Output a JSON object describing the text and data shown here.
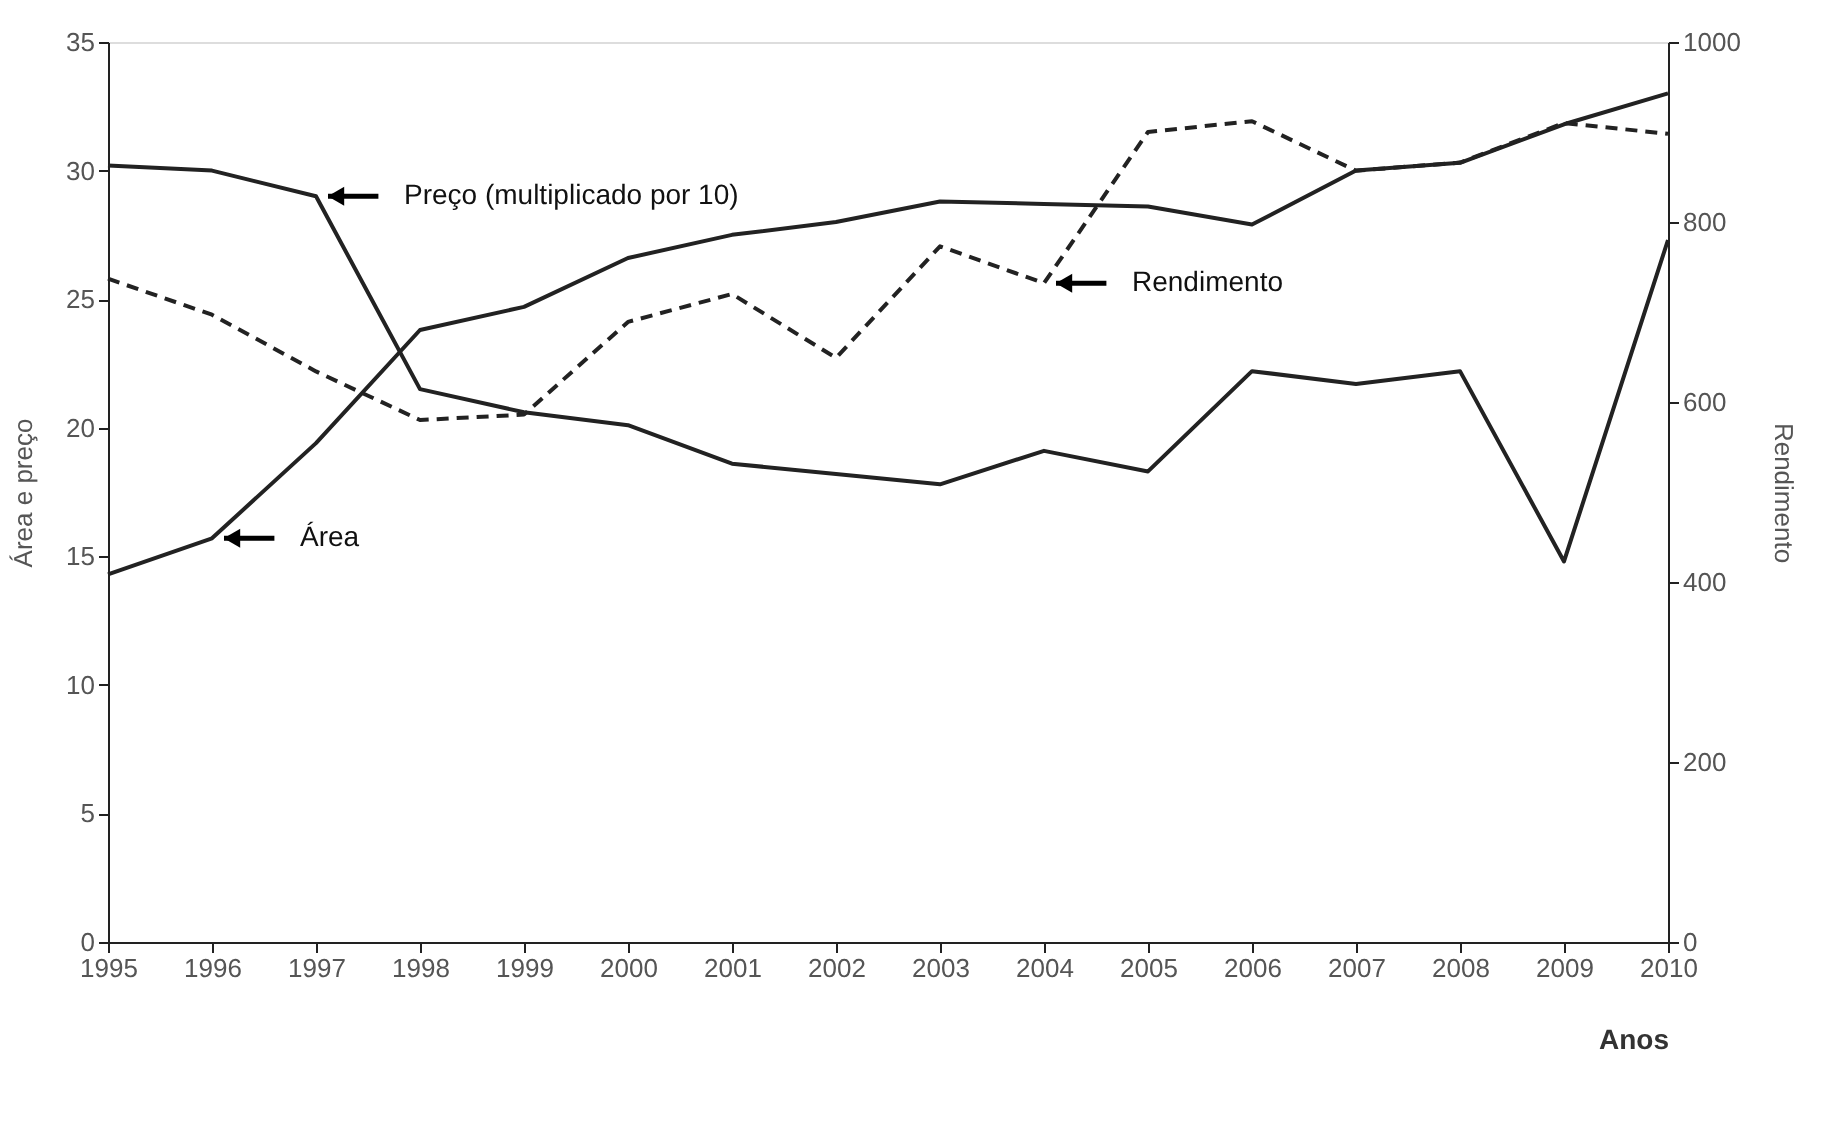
{
  "chart_data": {
    "type": "line",
    "xlabel": "Anos",
    "ylabel": "Área e preço",
    "y2label": "Rendimento",
    "x": [
      1995,
      1996,
      1997,
      1998,
      1999,
      2000,
      2001,
      2002,
      2003,
      2004,
      2005,
      2006,
      2007,
      2008,
      2009,
      2010
    ],
    "series": [
      {
        "color": "#222222",
        "line_style": "solid",
        "values": [
          30.2,
          30.0,
          29.0,
          21.5,
          20.6,
          20.1,
          18.6,
          18.2,
          17.8,
          19.1,
          18.3,
          22.2,
          21.7,
          22.2,
          14.8,
          27.3
        ]
      },
      {
        "color": "#222222",
        "line_style": "solid",
        "values": [
          14.3,
          15.7,
          19.4,
          23.8,
          24.7,
          26.6,
          27.5,
          28.0,
          28.8,
          28.7,
          28.6,
          27.9,
          30.0,
          30.3,
          31.8,
          33.0
        ]
      },
      {
        "color": "#222222",
        "line_style": "dashed",
        "axis": "y2",
        "values": [
          737,
          697,
          634,
          580,
          586,
          689,
          720,
          649,
          773,
          732,
          900,
          912,
          857,
          866,
          910,
          898
        ]
      }
    ],
    "xlim": [
      1995,
      2010
    ],
    "xticks": [
      1995,
      1996,
      1997,
      1998,
      1999,
      2000,
      2001,
      2002,
      2003,
      2004,
      2005,
      2006,
      2007,
      2008,
      2009,
      2010
    ],
    "ylim": [
      0,
      35
    ],
    "yticks": [
      0,
      5,
      10,
      15,
      20,
      25,
      30,
      35
    ],
    "y2lim": [
      0,
      1000
    ],
    "y2ticks": [
      0,
      200,
      400,
      600,
      800,
      1000
    ],
    "annotations": [
      {
        "text": "Preço (multiplicado por 10)",
        "x": 1997,
        "y": 29.0
      },
      {
        "text": "Área",
        "x": 1996,
        "y": 15.7
      },
      {
        "text": "Rendimento",
        "x": 2004,
        "y": 25.62
      }
    ],
    "grid": false,
    "legend": false,
    "marker": "none"
  }
}
